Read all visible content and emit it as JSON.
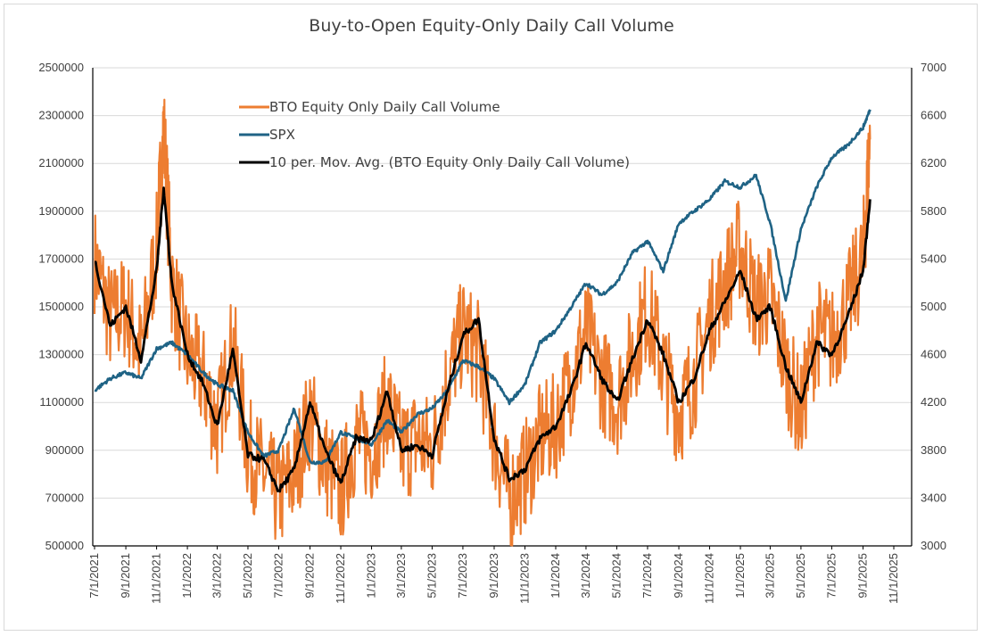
{
  "chart_data": {
    "type": "line",
    "title": "Buy-to-Open Equity-Only Daily Call Volume",
    "xlabel": "",
    "ylabel": "",
    "ylim_left": [
      500000,
      2500000
    ],
    "ylim_right": [
      3000,
      7000
    ],
    "yticks_left": [
      "500000",
      "700000",
      "900000",
      "1100000",
      "1300000",
      "1500000",
      "1700000",
      "1900000",
      "2100000",
      "2300000",
      "2500000"
    ],
    "yticks_right": [
      "3000",
      "3400",
      "3800",
      "4200",
      "4600",
      "5000",
      "5400",
      "5800",
      "6200",
      "6600",
      "7000"
    ],
    "x_tick_labels": [
      "7/1/2021",
      "9/1/2021",
      "11/1/2021",
      "1/1/2022",
      "3/1/2022",
      "5/1/2022",
      "7/1/2022",
      "9/1/2022",
      "11/1/2022",
      "1/1/2023",
      "3/1/2023",
      "5/1/2023",
      "7/1/2023",
      "9/1/2023",
      "11/1/2023",
      "1/1/2024",
      "3/1/2024",
      "5/1/2024",
      "7/1/2024",
      "9/1/2024",
      "11/1/2024",
      "1/1/2025",
      "3/1/2025",
      "5/1/2025",
      "7/1/2025",
      "9/1/2025",
      "11/1/2025"
    ],
    "legend_position": "top-left-inside",
    "grid": "horizontal",
    "series": [
      {
        "name": "BTO Equity Only Daily Call Volume",
        "axis": "left",
        "color": "#ed7d31",
        "x": [
          "7/1/2021",
          "8/1/2021",
          "9/1/2021",
          "10/1/2021",
          "11/1/2021",
          "11/15/2021",
          "12/1/2021",
          "1/1/2022",
          "2/1/2022",
          "3/1/2022",
          "4/1/2022",
          "5/1/2022",
          "6/1/2022",
          "7/1/2022",
          "8/1/2022",
          "9/1/2022",
          "10/1/2022",
          "11/1/2022",
          "12/1/2022",
          "1/1/2023",
          "2/1/2023",
          "3/1/2023",
          "4/1/2023",
          "5/1/2023",
          "6/1/2023",
          "7/1/2023",
          "8/1/2023",
          "9/1/2023",
          "10/1/2023",
          "11/1/2023",
          "12/1/2023",
          "1/1/2024",
          "2/1/2024",
          "3/1/2024",
          "4/1/2024",
          "5/1/2024",
          "6/1/2024",
          "7/1/2024",
          "8/1/2024",
          "9/1/2024",
          "10/1/2024",
          "11/1/2024",
          "12/1/2024",
          "1/1/2025",
          "2/1/2025",
          "3/1/2025",
          "4/1/2025",
          "5/1/2025",
          "6/1/2025",
          "7/1/2025",
          "8/1/2025",
          "9/1/2025",
          "9/15/2025"
        ],
        "values": [
          1700000,
          1450000,
          1500000,
          1300000,
          1750000,
          2250000,
          1600000,
          1300000,
          1200000,
          1000000,
          1350000,
          900000,
          800000,
          700000,
          800000,
          1050000,
          850000,
          720000,
          950000,
          900000,
          1100000,
          900000,
          950000,
          900000,
          1200000,
          1400000,
          1300000,
          950000,
          700000,
          800000,
          950000,
          1000000,
          1200000,
          1400000,
          1200000,
          1100000,
          1300000,
          1500000,
          1250000,
          1050000,
          1200000,
          1450000,
          1600000,
          1750000,
          1500000,
          1550000,
          1250000,
          1050000,
          1400000,
          1350000,
          1500000,
          1700000,
          2200000
        ]
      },
      {
        "name": "SPX",
        "axis": "right",
        "color": "#1f6385",
        "x": [
          "7/1/2021",
          "8/1/2021",
          "9/1/2021",
          "10/1/2021",
          "11/1/2021",
          "12/1/2021",
          "1/1/2022",
          "2/1/2022",
          "3/1/2022",
          "4/1/2022",
          "5/1/2022",
          "6/1/2022",
          "7/1/2022",
          "8/1/2022",
          "9/1/2022",
          "10/1/2022",
          "11/1/2022",
          "12/1/2022",
          "1/1/2023",
          "2/1/2023",
          "3/1/2023",
          "4/1/2023",
          "5/1/2023",
          "6/1/2023",
          "7/1/2023",
          "8/1/2023",
          "9/1/2023",
          "10/1/2023",
          "11/1/2023",
          "12/1/2023",
          "1/1/2024",
          "2/1/2024",
          "3/1/2024",
          "4/1/2024",
          "5/1/2024",
          "6/1/2024",
          "7/1/2024",
          "8/1/2024",
          "9/1/2024",
          "10/1/2024",
          "11/1/2024",
          "12/1/2024",
          "1/1/2025",
          "2/1/2025",
          "3/1/2025",
          "4/1/2025",
          "5/1/2025",
          "6/1/2025",
          "7/1/2025",
          "8/1/2025",
          "9/1/2025",
          "9/15/2025"
        ],
        "values": [
          4300,
          4400,
          4450,
          4400,
          4650,
          4700,
          4600,
          4450,
          4350,
          4300,
          3950,
          3750,
          3800,
          4150,
          3700,
          3700,
          3950,
          3900,
          3850,
          4050,
          3950,
          4100,
          4150,
          4300,
          4550,
          4500,
          4400,
          4200,
          4350,
          4700,
          4800,
          5000,
          5200,
          5100,
          5200,
          5450,
          5550,
          5300,
          5700,
          5800,
          5900,
          6050,
          6000,
          6100,
          5700,
          5050,
          5650,
          6000,
          6250,
          6350,
          6500,
          6650
        ]
      },
      {
        "name": "10 per. Mov. Avg. (BTO Equity Only Daily Call Volume)",
        "axis": "left",
        "color": "#000000",
        "x": [
          "7/1/2021",
          "8/1/2021",
          "9/1/2021",
          "10/1/2021",
          "11/1/2021",
          "11/15/2021",
          "12/1/2021",
          "1/1/2022",
          "2/1/2022",
          "3/1/2022",
          "4/1/2022",
          "5/1/2022",
          "6/1/2022",
          "7/1/2022",
          "8/1/2022",
          "9/1/2022",
          "10/1/2022",
          "11/1/2022",
          "12/1/2022",
          "1/1/2023",
          "2/1/2023",
          "3/1/2023",
          "4/1/2023",
          "5/1/2023",
          "6/1/2023",
          "7/1/2023",
          "8/1/2023",
          "9/1/2023",
          "10/1/2023",
          "11/1/2023",
          "12/1/2023",
          "1/1/2024",
          "2/1/2024",
          "3/1/2024",
          "4/1/2024",
          "5/1/2024",
          "6/1/2024",
          "7/1/2024",
          "8/1/2024",
          "9/1/2024",
          "10/1/2024",
          "11/1/2024",
          "12/1/2024",
          "1/1/2025",
          "2/1/2025",
          "3/1/2025",
          "4/1/2025",
          "5/1/2025",
          "6/1/2025",
          "7/1/2025",
          "8/1/2025",
          "9/1/2025",
          "9/15/2025"
        ],
        "values": [
          1700000,
          1420000,
          1500000,
          1280000,
          1650000,
          2000000,
          1600000,
          1300000,
          1180000,
          1000000,
          1320000,
          880000,
          860000,
          730000,
          820000,
          1100000,
          900000,
          760000,
          950000,
          940000,
          1150000,
          900000,
          920000,
          880000,
          1150000,
          1380000,
          1450000,
          950000,
          780000,
          820000,
          950000,
          1000000,
          1150000,
          1350000,
          1200000,
          1100000,
          1280000,
          1450000,
          1300000,
          1100000,
          1200000,
          1400000,
          1520000,
          1650000,
          1450000,
          1500000,
          1250000,
          1100000,
          1350000,
          1300000,
          1450000,
          1650000,
          1950000
        ]
      }
    ]
  }
}
